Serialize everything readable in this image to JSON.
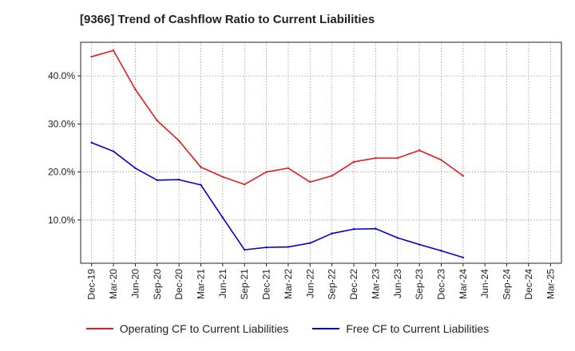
{
  "chart_data": {
    "type": "line",
    "title": "[9366]  Trend of Cashflow Ratio to Current Liabilities",
    "x": [
      "Dec-19",
      "Mar-20",
      "Jun-20",
      "Sep-20",
      "Dec-20",
      "Mar-21",
      "Jun-21",
      "Sep-21",
      "Dec-21",
      "Mar-22",
      "Jun-22",
      "Sep-22",
      "Dec-22",
      "Mar-23",
      "Jun-23",
      "Sep-23",
      "Dec-23",
      "Mar-24",
      "Jun-24",
      "Sep-24",
      "Dec-24",
      "Mar-25"
    ],
    "series": [
      {
        "name": "Operating CF to Current Liabilities",
        "color": "#e41a1c",
        "values": [
          44.0,
          45.3,
          37.2,
          30.7,
          26.5,
          21.0,
          19.0,
          17.4,
          20.0,
          20.8,
          17.9,
          19.2,
          22.1,
          22.9,
          22.9,
          24.5,
          22.5,
          19.2,
          null,
          null,
          null,
          null
        ]
      },
      {
        "name": "Free CF to Current Liabilities",
        "color": "#0000cd",
        "values": [
          26.1,
          24.3,
          20.8,
          18.3,
          18.4,
          17.3,
          10.5,
          3.8,
          4.3,
          4.4,
          5.2,
          7.2,
          8.1,
          8.2,
          6.3,
          4.9,
          3.6,
          2.2,
          null,
          null,
          null,
          null
        ]
      }
    ],
    "yticks": [
      "10.0%",
      "20.0%",
      "30.0%",
      "40.0%"
    ],
    "ytick_values": [
      10,
      20,
      30,
      40
    ],
    "ylim": [
      1,
      47
    ],
    "grid": true,
    "legend_position": "bottom"
  }
}
